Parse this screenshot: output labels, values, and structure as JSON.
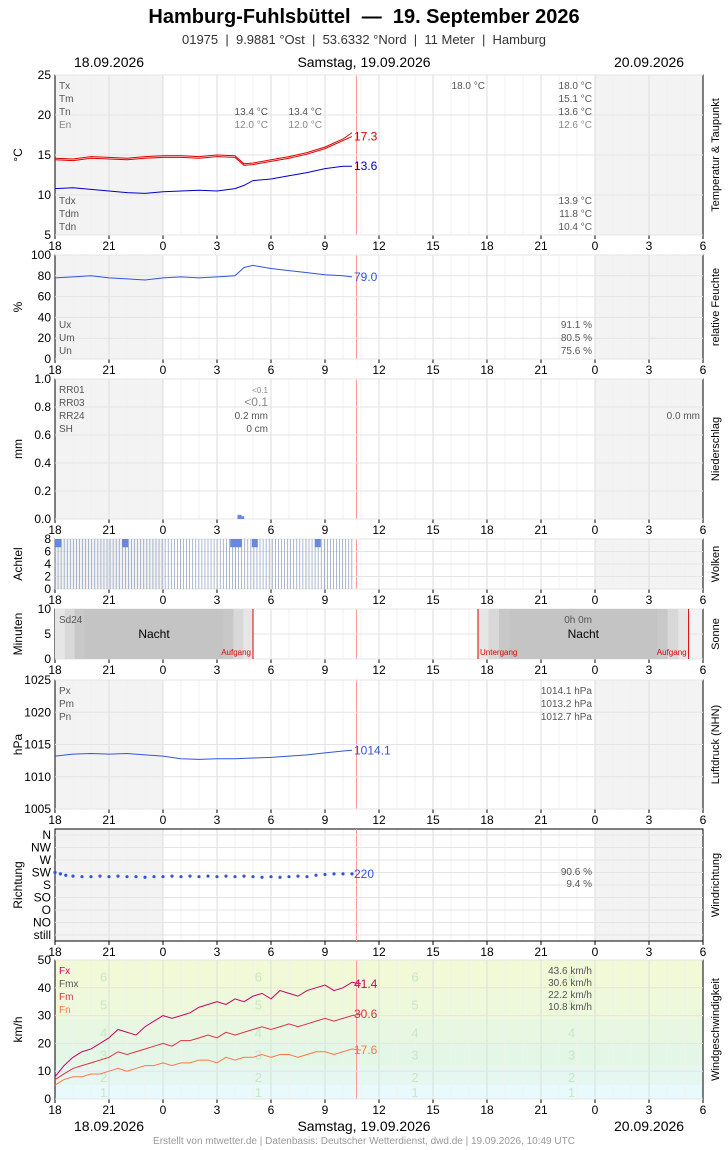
{
  "header": {
    "title": "Hamburg-Fuhlsbüttel  —  19. September 2026",
    "subtitle": "01975  |  9.9881 °Ost  |  53.6332 °Nord  |  11 Meter  |  Hamburg",
    "date_left": "18.09.2026",
    "date_center": "Samstag, 19.09.2026",
    "date_right": "20.09.2026"
  },
  "footer": {
    "date_left": "18.09.2026",
    "date_center": "Samstag, 19.09.2026",
    "date_right": "20.09.2026",
    "credit": "Erstellt von mtwetter.de | Datenbasis: Deutscher Wetterdienst, dwd.de | 19.09.2026, 10:49 UTC"
  },
  "colors": {
    "temp": "#e00000",
    "dew": "#0000cc",
    "series": "#3355dd",
    "grid": "#dddddd",
    "now": "#ff9999",
    "wind_fx": "#cc0066",
    "wind_fm": "#dd3344",
    "wind_fn": "#ff7744"
  },
  "x_axis": {
    "ticks": [
      "18",
      "21",
      "0",
      "3",
      "6",
      "9",
      "12",
      "15",
      "18",
      "21",
      "0",
      "3",
      "6"
    ],
    "range_hours": [
      0,
      36
    ],
    "now_hour": 16.75
  },
  "chart_data": [
    {
      "type": "line",
      "panel": "temperatur",
      "ylabel": "°C",
      "side_label": "Temperatur & Taupunkt",
      "ylim": [
        5,
        25
      ],
      "yticks": [
        "25",
        "20",
        "15",
        "10",
        "5"
      ],
      "stats_left": [
        {
          "k": "Tx",
          "c": "#555"
        },
        {
          "k": "Tm",
          "c": "#555"
        },
        {
          "k": "Tn",
          "c": "#555"
        },
        {
          "k": "En",
          "c": "#888"
        }
      ],
      "stats_mid": [
        {
          "v1": "13.4 °C",
          "v2": "13.4 °C",
          "c": "#555"
        },
        {
          "v1": "12.0 °C",
          "v2": "12.0 °C",
          "c": "#888"
        }
      ],
      "stats_top": "18.0 °C",
      "stats_right": [
        {
          "v": "18.0 °C",
          "c": "#555"
        },
        {
          "v": "15.1 °C",
          "c": "#555"
        },
        {
          "v": "13.6 °C",
          "c": "#555"
        },
        {
          "v": "12.6 °C",
          "c": "#888"
        }
      ],
      "stats_bottom_left": [
        "Tdx",
        "Tdm",
        "Tdn"
      ],
      "stats_bottom_right": [
        "13.9 °C",
        "11.8 °C",
        "10.4 °C"
      ],
      "series": [
        {
          "x": [
            0,
            1,
            2,
            3,
            4,
            5,
            6,
            7,
            8,
            9,
            10,
            10.5,
            11,
            12,
            13,
            14,
            15,
            16,
            16.5
          ],
          "values": [
            14.6,
            14.5,
            14.8,
            14.7,
            14.6,
            14.8,
            14.9,
            14.9,
            14.8,
            15.0,
            14.9,
            13.9,
            14.0,
            14.4,
            14.8,
            15.3,
            16.0,
            17.0,
            17.8
          ]
        },
        {
          "x": [
            0,
            1,
            2,
            3,
            4,
            5,
            6,
            7,
            8,
            9,
            10,
            10.5,
            11,
            12,
            13,
            14,
            15,
            16,
            16.5
          ],
          "values": [
            14.4,
            14.3,
            14.6,
            14.5,
            14.4,
            14.6,
            14.7,
            14.7,
            14.6,
            14.8,
            14.7,
            13.7,
            13.8,
            14.2,
            14.6,
            15.1,
            15.8,
            16.8,
            17.3
          ]
        },
        {
          "x": [
            0,
            1,
            2,
            3,
            4,
            5,
            6,
            7,
            8,
            9,
            10,
            10.5,
            11,
            12,
            13,
            14,
            15,
            16,
            16.5
          ],
          "values": [
            10.8,
            10.9,
            10.7,
            10.5,
            10.3,
            10.2,
            10.4,
            10.5,
            10.6,
            10.5,
            10.8,
            11.2,
            11.8,
            12.0,
            12.4,
            12.8,
            13.3,
            13.6,
            13.6
          ]
        }
      ],
      "last_labels": [
        {
          "v": "17.3",
          "c": "#e00000",
          "y": 17.3
        },
        {
          "v": "13.6",
          "c": "#0000cc",
          "y": 13.6
        }
      ]
    },
    {
      "type": "line",
      "panel": "feuchte",
      "ylabel": "%",
      "side_label": "relative Feuchte",
      "ylim": [
        0,
        100
      ],
      "yticks": [
        "100",
        "80",
        "60",
        "40",
        "20",
        "0"
      ],
      "stats_left": [
        "Ux",
        "Um",
        "Un"
      ],
      "stats_right": [
        "91.1 %",
        "80.5 %",
        "75.6 %"
      ],
      "series": [
        {
          "x": [
            0,
            1,
            2,
            3,
            4,
            5,
            6,
            7,
            8,
            9,
            10,
            10.5,
            11,
            12,
            13,
            14,
            15,
            16,
            16.5
          ],
          "values": [
            78,
            79,
            80,
            78,
            77,
            76,
            78,
            79,
            78,
            79,
            80,
            88,
            90,
            87,
            85,
            83,
            81,
            80,
            79
          ]
        }
      ],
      "last_labels": [
        {
          "v": "79.0",
          "c": "#3355dd",
          "y": 79
        }
      ]
    },
    {
      "type": "bar",
      "panel": "niederschlag",
      "ylabel": "mm",
      "side_label": "Niederschlag",
      "ylim": [
        0,
        1
      ],
      "yticks": [
        "1.0",
        "0.8",
        "0.6",
        "0.4",
        "0.2",
        "0.0"
      ],
      "stats_left": [
        "RR01",
        "RR03",
        "RR24",
        "SH"
      ],
      "stats_mid": [
        "<0.1",
        "<0.1",
        "0.2 mm",
        "0 cm"
      ],
      "stats_right": "0.0 mm",
      "bars": {
        "x": [
          10.25,
          10.4
        ],
        "values": [
          0.03,
          0.02
        ]
      }
    },
    {
      "type": "bar",
      "panel": "wolken",
      "ylabel": "Achtel",
      "side_label": "Wolken",
      "ylim": [
        0,
        8
      ],
      "yticks": [
        "8",
        "6",
        "4",
        "2",
        "0"
      ],
      "bars": {
        "x": [
          0.2,
          3.9,
          9.9,
          10.2,
          11.1,
          14.6
        ],
        "values": [
          7,
          7,
          7,
          7,
          7,
          7
        ]
      }
    },
    {
      "type": "area",
      "panel": "sonne",
      "ylabel": "Minuten",
      "side_label": "Sonne",
      "ylim": [
        0,
        10
      ],
      "yticks": [
        "10",
        "5",
        "0"
      ],
      "stats_left": "Sd24",
      "stats_right": "0h 0m",
      "nights": [
        {
          "from": 0,
          "to": 11,
          "label": "Nacht"
        },
        {
          "from": 23.5,
          "to": 35.2,
          "label": "Nacht"
        }
      ],
      "events": [
        {
          "x": 11,
          "label": "Aufgang"
        },
        {
          "x": 23.5,
          "label": "Untergang"
        },
        {
          "x": 35.2,
          "label": "Aufgang"
        }
      ]
    },
    {
      "type": "line",
      "panel": "luftdruck",
      "ylabel": "hPa",
      "side_label": "Luftdruck (NHN)",
      "ylim": [
        1005,
        1025
      ],
      "yticks": [
        "1025",
        "1020",
        "1015",
        "1010",
        "1005"
      ],
      "stats_left": [
        "Px",
        "Pm",
        "Pn"
      ],
      "stats_right": [
        "1014.1 hPa",
        "1013.2 hPa",
        "1012.7 hPa"
      ],
      "series": [
        {
          "x": [
            0,
            1,
            2,
            3,
            4,
            5,
            6,
            7,
            8,
            9,
            10,
            11,
            12,
            13,
            14,
            15,
            16,
            16.5
          ],
          "values": [
            1013.2,
            1013.5,
            1013.6,
            1013.5,
            1013.6,
            1013.4,
            1013.2,
            1012.8,
            1012.7,
            1012.8,
            1012.8,
            1012.9,
            1013.0,
            1013.2,
            1013.4,
            1013.7,
            1014.0,
            1014.1
          ]
        }
      ],
      "last_labels": [
        {
          "v": "1014.1",
          "c": "#3355dd",
          "y": 1014.1
        }
      ]
    },
    {
      "type": "scatter",
      "panel": "windrichtung",
      "ylabel": "Richtung",
      "side_label": "Windrichtung",
      "ylabels": [
        "N",
        "NW",
        "W",
        "SW",
        "S",
        "SO",
        "O",
        "NO",
        "still"
      ],
      "stats_right": [
        "90.6 %",
        "9.4 %"
      ],
      "series": [
        {
          "x": [
            0,
            0.3,
            0.6,
            1,
            1.5,
            2,
            2.5,
            3,
            3.5,
            4,
            4.5,
            5,
            5.5,
            6,
            6.5,
            7,
            7.5,
            8,
            8.5,
            9,
            9.5,
            10,
            10.5,
            11,
            11.5,
            12,
            12.5,
            13,
            13.5,
            14,
            14.5,
            15,
            15.5,
            16,
            16.5
          ],
          "values": [
            225,
            220,
            215,
            212,
            210,
            210,
            212,
            210,
            212,
            210,
            210,
            208,
            210,
            210,
            212,
            210,
            212,
            210,
            212,
            210,
            212,
            210,
            212,
            210,
            208,
            210,
            208,
            210,
            212,
            210,
            215,
            218,
            220,
            220,
            220
          ]
        }
      ],
      "last_labels": [
        {
          "v": "220",
          "c": "#3355dd",
          "y": 220
        }
      ]
    },
    {
      "type": "line",
      "panel": "wind",
      "ylabel": "km/h",
      "side_label": "Windgeschwindigkeit",
      "ylim": [
        0,
        50
      ],
      "yticks": [
        "50",
        "40",
        "30",
        "20",
        "10",
        "0"
      ],
      "stats_left": [
        {
          "k": "Fx",
          "c": "#cc0066"
        },
        {
          "k": "Fmx",
          "c": "#555"
        },
        {
          "k": "Fm",
          "c": "#dd3344"
        },
        {
          "k": "Fn",
          "c": "#ff7744"
        }
      ],
      "stats_right": [
        "43.6 km/h",
        "30.6 km/h",
        "22.2 km/h",
        "10.8 km/h"
      ],
      "beaufort": [
        "6",
        "5",
        "4",
        "3",
        "2",
        "1"
      ],
      "series": [
        {
          "name": "Fx",
          "values": [
            8,
            12,
            15,
            17,
            18,
            20,
            22,
            25,
            24,
            23,
            26,
            28,
            30,
            29,
            30,
            31,
            33,
            34,
            35,
            34,
            36,
            35,
            37,
            38,
            36,
            39,
            38,
            37,
            39,
            40,
            41,
            39,
            40,
            42,
            41.4
          ],
          "x_step": 0.5
        },
        {
          "name": "Fm",
          "values": [
            7,
            9,
            11,
            12,
            13,
            14,
            15,
            17,
            16,
            17,
            18,
            19,
            20,
            19,
            21,
            21,
            22,
            23,
            22,
            24,
            23,
            24,
            25,
            26,
            25,
            26,
            27,
            26,
            27,
            28,
            29,
            28,
            29,
            30,
            30.6
          ],
          "x_step": 0.5
        },
        {
          "name": "Fn",
          "values": [
            5,
            7,
            8,
            8,
            9,
            9,
            10,
            11,
            10,
            11,
            12,
            12,
            13,
            12,
            13,
            13,
            14,
            14,
            13,
            15,
            14,
            15,
            15,
            16,
            15,
            16,
            16,
            15,
            16,
            17,
            17,
            16,
            17,
            18,
            17.6
          ],
          "x_step": 0.5
        }
      ],
      "last_labels": [
        {
          "v": "41.4",
          "c": "#cc0066",
          "y": 41.4
        },
        {
          "v": "30.6",
          "c": "#dd3344",
          "y": 30.6
        },
        {
          "v": "17.6",
          "c": "#ff7744",
          "y": 17.6
        }
      ]
    }
  ]
}
